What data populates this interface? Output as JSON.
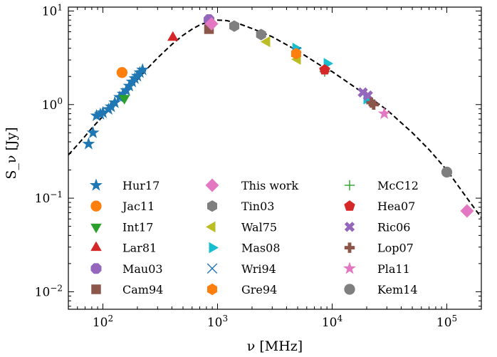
{
  "chart_data": {
    "type": "scatter",
    "xlabel": "ν [MHz]",
    "ylabel": "S_ν [Jy]",
    "x_scale": "log",
    "y_scale": "log",
    "xlim": [
      50,
      200000
    ],
    "ylim": [
      0.0065,
      11
    ],
    "x_ticks": [
      {
        "value": 100,
        "base": "10",
        "exp": "2"
      },
      {
        "value": 1000,
        "base": "10",
        "exp": "3"
      },
      {
        "value": 10000,
        "base": "10",
        "exp": "4"
      },
      {
        "value": 100000,
        "base": "10",
        "exp": "5"
      }
    ],
    "y_ticks": [
      {
        "value": 0.01,
        "base": "10",
        "exp": "−2"
      },
      {
        "value": 0.1,
        "base": "10",
        "exp": "−1"
      },
      {
        "value": 1,
        "base": "10",
        "exp": "0"
      },
      {
        "value": 10,
        "base": "10",
        "exp": "1"
      }
    ],
    "grid": false,
    "legend_position": "bottom",
    "model_curve": {
      "style": "dashed",
      "color": "#000000",
      "points": [
        [
          50,
          0.29
        ],
        [
          60,
          0.37
        ],
        [
          70,
          0.46
        ],
        [
          80,
          0.56
        ],
        [
          100,
          0.75
        ],
        [
          130,
          1.05
        ],
        [
          160,
          1.38
        ],
        [
          200,
          1.85
        ],
        [
          250,
          2.5
        ],
        [
          300,
          3.15
        ],
        [
          400,
          4.4
        ],
        [
          500,
          5.5
        ],
        [
          600,
          6.4
        ],
        [
          700,
          7.1
        ],
        [
          850,
          7.75
        ],
        [
          1000,
          8.0
        ],
        [
          1200,
          7.9
        ],
        [
          1500,
          7.4
        ],
        [
          2000,
          6.5
        ],
        [
          3000,
          5.3
        ],
        [
          5000,
          3.75
        ],
        [
          8000,
          2.6
        ],
        [
          10000,
          2.25
        ],
        [
          15000,
          1.6
        ],
        [
          20000,
          1.25
        ],
        [
          30000,
          0.88
        ],
        [
          50000,
          0.5
        ],
        [
          70000,
          0.33
        ],
        [
          100000,
          0.2
        ],
        [
          150000,
          0.1
        ],
        [
          200000,
          0.062
        ]
      ]
    },
    "series": [
      {
        "name": "Hur17",
        "marker": "star",
        "color": "#1f77b4",
        "points": [
          [
            75,
            0.38
          ],
          [
            82,
            0.5
          ],
          [
            88,
            0.76
          ],
          [
            95,
            0.79
          ],
          [
            100,
            0.82
          ],
          [
            112,
            0.89
          ],
          [
            118,
            0.95
          ],
          [
            127,
            1.05
          ],
          [
            140,
            1.2
          ],
          [
            150,
            1.3
          ],
          [
            160,
            1.42
          ],
          [
            170,
            1.58
          ],
          [
            180,
            1.75
          ],
          [
            190,
            1.9
          ],
          [
            200,
            2.02
          ],
          [
            210,
            2.2
          ],
          [
            222,
            2.35
          ]
        ]
      },
      {
        "name": "Jac11",
        "marker": "circle",
        "color": "#ff7f0e",
        "points": [
          [
            147,
            2.2
          ]
        ]
      },
      {
        "name": "Int17",
        "marker": "triangle-down",
        "color": "#2ca02c",
        "points": [
          [
            154,
            1.17
          ]
        ]
      },
      {
        "name": "Lar81",
        "marker": "triangle-up",
        "color": "#d62728",
        "points": [
          [
            408,
            5.2
          ]
        ]
      },
      {
        "name": "Mau03",
        "marker": "octagon",
        "color": "#9467bd",
        "points": [
          [
            843,
            8.1
          ]
        ]
      },
      {
        "name": "Cam94",
        "marker": "square",
        "color": "#8c564b",
        "points": [
          [
            843,
            6.4
          ]
        ]
      },
      {
        "name": "This work",
        "marker": "diamond",
        "color": "#e377c2",
        "points": [
          [
            887,
            7.3
          ],
          [
            150000,
            0.073
          ]
        ]
      },
      {
        "name": "Tin03",
        "marker": "hexagon",
        "color": "#7f7f7f",
        "points": [
          [
            1400,
            6.9
          ],
          [
            2400,
            5.6
          ]
        ]
      },
      {
        "name": "Wal75",
        "marker": "triangle-left",
        "color": "#bcbd22",
        "points": [
          [
            2700,
            4.7
          ],
          [
            5000,
            3.05
          ]
        ]
      },
      {
        "name": "Mas08",
        "marker": "triangle-right",
        "color": "#17becf",
        "points": [
          [
            4800,
            4.0
          ],
          [
            9000,
            2.75
          ],
          [
            20000,
            1.15
          ]
        ]
      },
      {
        "name": "Wri94",
        "marker": "x",
        "color": "#1f77b4",
        "points": [
          [
            4850,
            3.65
          ]
        ]
      },
      {
        "name": "Gre94",
        "marker": "hexagon",
        "color": "#ff7f0e",
        "points": [
          [
            4850,
            3.5
          ]
        ]
      },
      {
        "name": "McC12",
        "marker": "plus",
        "color": "#2ca02c",
        "points": [
          [
            8600,
            2.25
          ]
        ]
      },
      {
        "name": "Hea07",
        "marker": "pentagon",
        "color": "#d62728",
        "points": [
          [
            8600,
            2.35
          ]
        ]
      },
      {
        "name": "Ric06",
        "marker": "x-filled",
        "color": "#9467bd",
        "points": [
          [
            18500,
            1.35
          ],
          [
            20500,
            1.25
          ]
        ]
      },
      {
        "name": "Lop07",
        "marker": "plus-filled",
        "color": "#8c564b",
        "points": [
          [
            22000,
            1.05
          ],
          [
            23000,
            1.0
          ]
        ]
      },
      {
        "name": "Pla11",
        "marker": "star",
        "color": "#e377c2",
        "points": [
          [
            28500,
            0.8
          ]
        ]
      },
      {
        "name": "Kem14",
        "marker": "circle",
        "color": "#7f7f7f",
        "points": [
          [
            100000,
            0.19
          ]
        ]
      }
    ]
  }
}
